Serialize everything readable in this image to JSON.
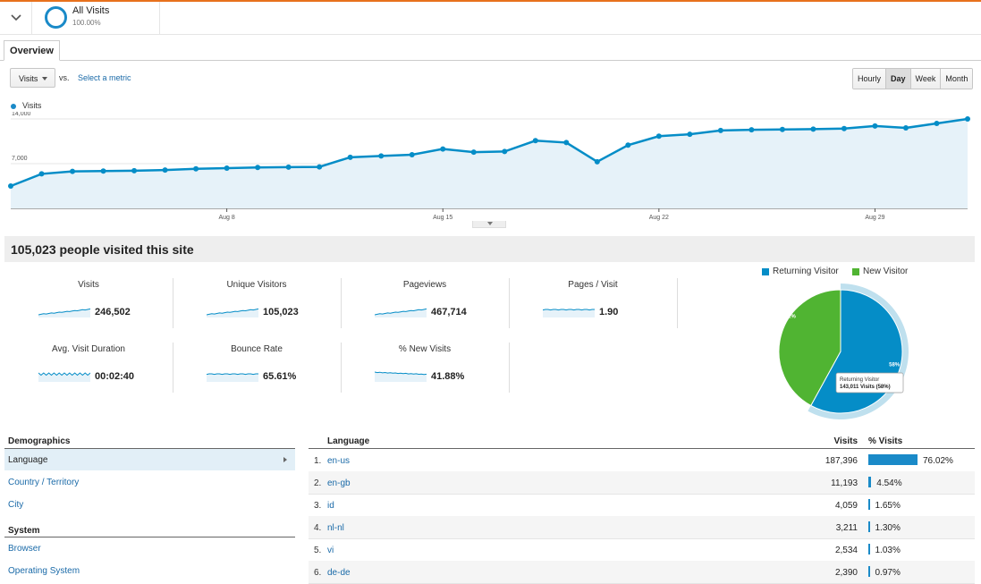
{
  "segment": {
    "name": "All Visits",
    "percent": "100.00%"
  },
  "tabs": {
    "overview": "Overview"
  },
  "controls": {
    "metric": "Visits",
    "vs": "vs.",
    "select_metric": "Select a metric",
    "granularity": [
      "Hourly",
      "Day",
      "Week",
      "Month"
    ],
    "active_granularity": "Day"
  },
  "chart_data": {
    "type": "area",
    "series": [
      {
        "name": "Visits",
        "values": [
          3500,
          5400,
          5800,
          5850,
          5900,
          6000,
          6200,
          6300,
          6400,
          6450,
          6500,
          8000,
          8200,
          8400,
          9300,
          8800,
          8900,
          10600,
          10300,
          7300,
          9900,
          11300,
          11600,
          12200,
          12300,
          12350,
          12400,
          12500,
          12900,
          12600,
          13300,
          14000
        ]
      }
    ],
    "x_tick_labels": [
      {
        "label": "Aug 8",
        "index": 7
      },
      {
        "label": "Aug 15",
        "index": 14
      },
      {
        "label": "Aug 22",
        "index": 21
      },
      {
        "label": "Aug 29",
        "index": 28
      }
    ],
    "y_tick_labels": [
      "14,000",
      "7,000"
    ],
    "ylim": [
      0,
      14000
    ],
    "grid": true
  },
  "headline": "105,023 people visited this site",
  "metrics": [
    {
      "label": "Visits",
      "value": "246,502"
    },
    {
      "label": "Unique Visitors",
      "value": "105,023"
    },
    {
      "label": "Pageviews",
      "value": "467,714"
    },
    {
      "label": "Pages / Visit",
      "value": "1.90"
    },
    {
      "label": "Avg. Visit Duration",
      "value": "00:02:40"
    },
    {
      "label": "Bounce Rate",
      "value": "65.61%"
    },
    {
      "label": "% New Visits",
      "value": "41.88%"
    }
  ],
  "pie": {
    "legend": [
      "Returning Visitor",
      "New Visitor"
    ],
    "colors": {
      "returning": "#058dc7",
      "new": "#50b432"
    },
    "slices": [
      {
        "name": "Returning Visitor",
        "label": "58%",
        "value": 58
      },
      {
        "name": "New Visitor",
        "label": "42%",
        "value": 42
      }
    ],
    "tooltip_line1": "Returning Visitor",
    "tooltip_line2": "143,011 Visits (58%)"
  },
  "nav": {
    "demographics": "Demographics",
    "language": "Language",
    "country": "Country / Territory",
    "city": "City",
    "system": "System",
    "browser": "Browser",
    "os": "Operating System"
  },
  "table": {
    "headers": {
      "language": "Language",
      "visits": "Visits",
      "pct": "% Visits"
    },
    "rows": [
      {
        "num": "1.",
        "lang": "en-us",
        "visits": "187,396",
        "pct": "76.02%",
        "share": 76.02
      },
      {
        "num": "2.",
        "lang": "en-gb",
        "visits": "11,193",
        "pct": "4.54%",
        "share": 4.54
      },
      {
        "num": "3.",
        "lang": "id",
        "visits": "4,059",
        "pct": "1.65%",
        "share": 1.65
      },
      {
        "num": "4.",
        "lang": "nl-nl",
        "visits": "3,211",
        "pct": "1.30%",
        "share": 1.3
      },
      {
        "num": "5.",
        "lang": "vi",
        "visits": "2,534",
        "pct": "1.03%",
        "share": 1.03
      },
      {
        "num": "6.",
        "lang": "de-de",
        "visits": "2,390",
        "pct": "0.97%",
        "share": 0.97
      }
    ]
  }
}
